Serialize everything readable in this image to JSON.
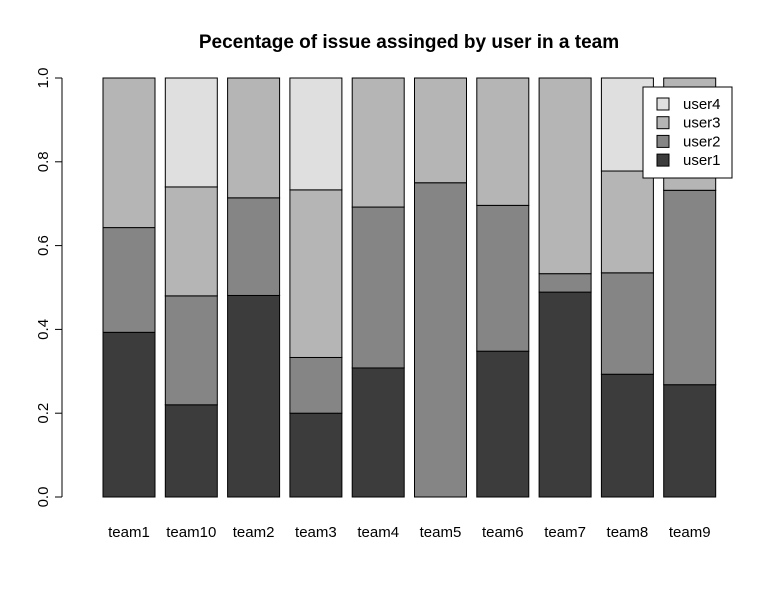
{
  "chart_data": {
    "type": "bar",
    "stacked": true,
    "title": "Pecentage of issue assinged by user in a team",
    "xlabel": "",
    "ylabel": "",
    "ylim": [
      0,
      1
    ],
    "yticks": [
      "0.0",
      "0.2",
      "0.4",
      "0.6",
      "0.8",
      "1.0"
    ],
    "categories": [
      "team1",
      "team10",
      "team2",
      "team3",
      "team4",
      "team5",
      "team6",
      "team7",
      "team8",
      "team9"
    ],
    "series": [
      {
        "name": "user1",
        "color": "#3c3c3c",
        "values": [
          0.393,
          0.22,
          0.481,
          0.2,
          0.308,
          0.0,
          0.348,
          0.489,
          0.293,
          0.268
        ]
      },
      {
        "name": "user2",
        "color": "#858585",
        "values": [
          0.25,
          0.26,
          0.233,
          0.133,
          0.384,
          0.75,
          0.348,
          0.044,
          0.242,
          0.464
        ]
      },
      {
        "name": "user3",
        "color": "#b5b5b5",
        "values": [
          0.357,
          0.26,
          0.286,
          0.4,
          0.308,
          0.25,
          0.304,
          0.467,
          0.243,
          0.268
        ]
      },
      {
        "name": "user4",
        "color": "#dfdfdf",
        "values": [
          0.0,
          0.26,
          0.0,
          0.267,
          0.0,
          0.0,
          0.0,
          0.0,
          0.222,
          0.0
        ]
      }
    ],
    "legend": {
      "position": "top-right",
      "order": [
        "user4",
        "user3",
        "user2",
        "user1"
      ]
    },
    "grid": false
  }
}
